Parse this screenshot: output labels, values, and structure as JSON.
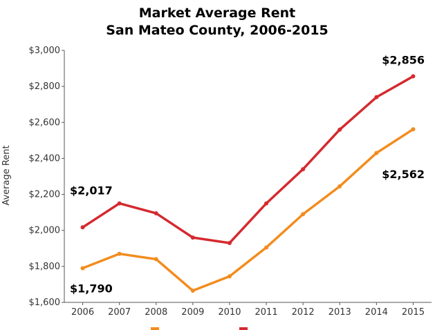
{
  "chart_data": {
    "type": "line",
    "title": [
      "Market Average Rent",
      "San Mateo County, 2006-2015"
    ],
    "xlabel": "",
    "ylabel": "Average Rent",
    "x": [
      "2006",
      "2007",
      "2008",
      "2009",
      "2010",
      "2011",
      "2012",
      "2013",
      "2014",
      "2015"
    ],
    "ylim": [
      1600,
      3000
    ],
    "yticks": [
      1600,
      1800,
      2000,
      2200,
      2400,
      2600,
      2800,
      3000
    ],
    "ytick_labels": [
      "$1,600",
      "$1,800",
      "$2,000",
      "$2,200",
      "$2,400",
      "$2,600",
      "$2,800",
      "$3,000"
    ],
    "grid": false,
    "legend": "bottom",
    "series": [
      {
        "color": "#F28C1E",
        "values": [
          1790,
          1870,
          1840,
          1665,
          1745,
          1905,
          2090,
          2245,
          2430,
          2562
        ]
      },
      {
        "color": "#D42A2F",
        "values": [
          2017,
          2150,
          2095,
          1960,
          1930,
          2150,
          2340,
          2560,
          2740,
          2856
        ]
      }
    ],
    "annotations": [
      {
        "text": "$2,856",
        "series": 1,
        "index": 9,
        "position": "above"
      },
      {
        "text": "$2,017",
        "series": 1,
        "index": 0,
        "position": "above"
      },
      {
        "text": "$2,562",
        "series": 0,
        "index": 9,
        "position": "below"
      },
      {
        "text": "$1,790",
        "series": 0,
        "index": 0,
        "position": "below"
      }
    ]
  }
}
